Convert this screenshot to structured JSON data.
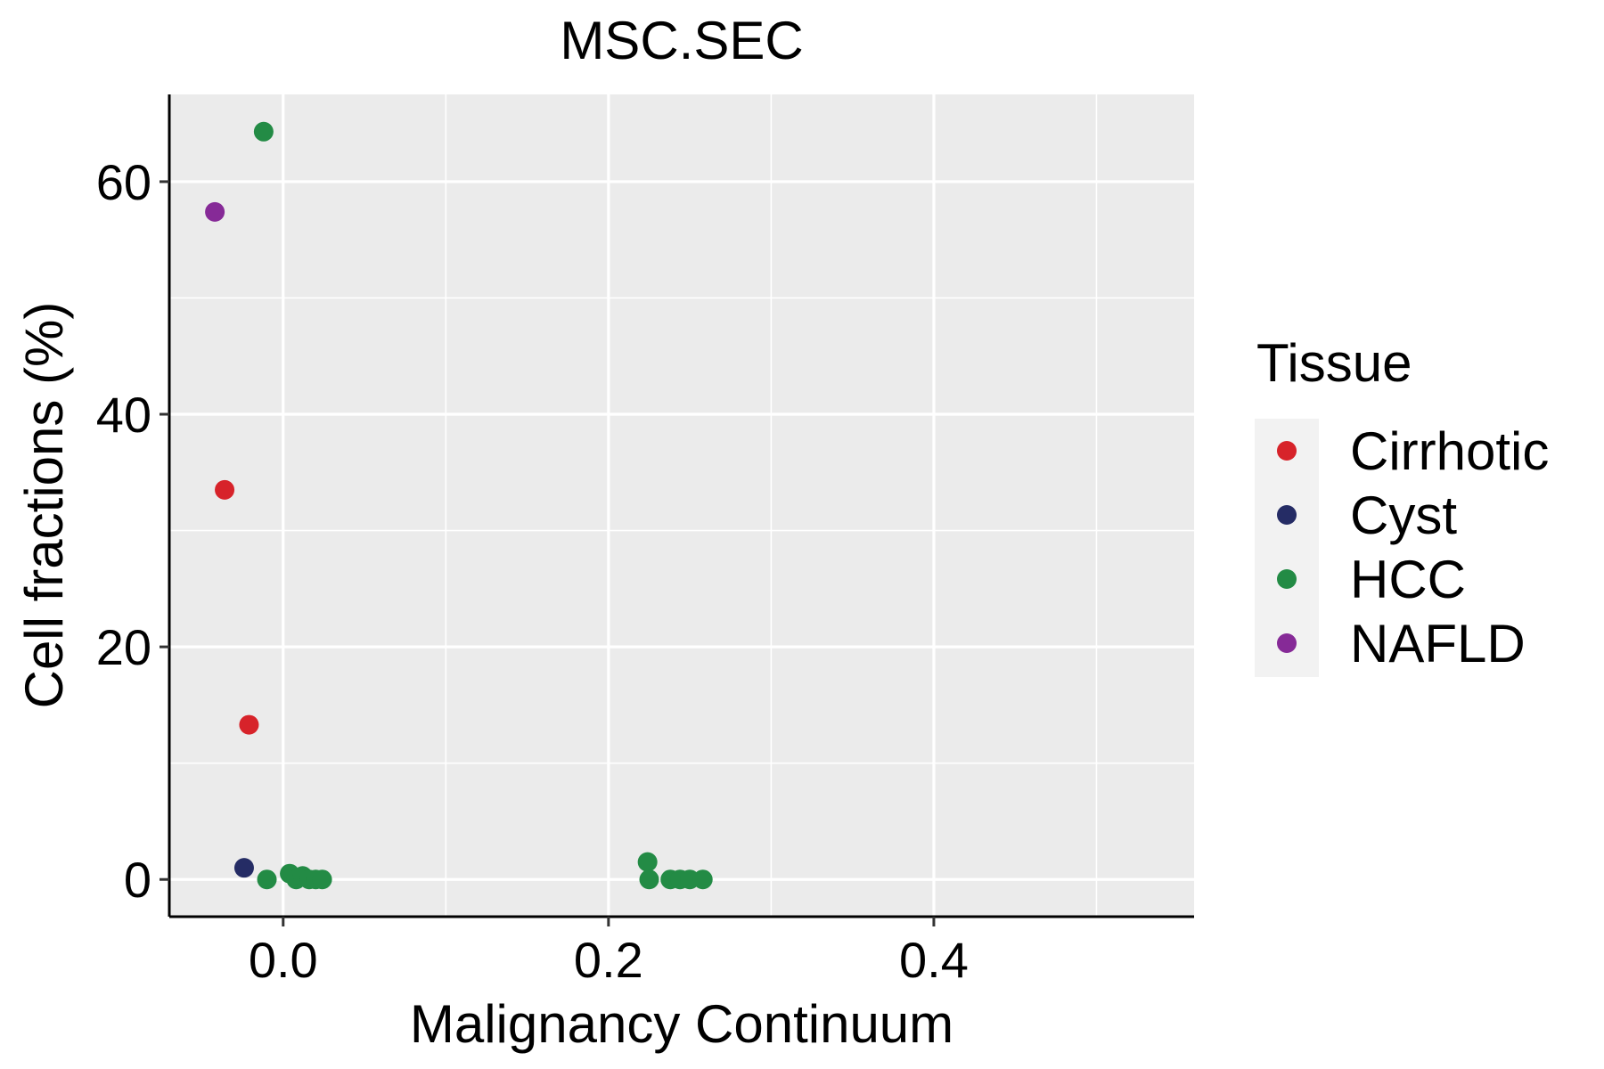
{
  "chart_data": {
    "type": "scatter",
    "title": "MSC.SEC",
    "xlabel": "Malignancy Continuum",
    "ylabel": "Cell fractions (%)",
    "xlim": [
      -0.07,
      0.56
    ],
    "ylim": [
      -3.2,
      67.5
    ],
    "x_ticks": [
      0.0,
      0.2,
      0.4
    ],
    "x_tick_labels": [
      "0.0",
      "0.2",
      "0.4"
    ],
    "y_ticks": [
      0,
      20,
      40,
      60
    ],
    "y_tick_labels": [
      "0",
      "20",
      "40",
      "60"
    ],
    "grid": true,
    "background": "#EBEBEB",
    "legend": {
      "title": "Tissue",
      "position": "right",
      "entries": [
        {
          "name": "Cirrhotic",
          "color": "#D7232A"
        },
        {
          "name": "Cyst",
          "color": "#252C65"
        },
        {
          "name": "HCC",
          "color": "#238B45"
        },
        {
          "name": "NAFLD",
          "color": "#862A97"
        }
      ]
    },
    "series": [
      {
        "name": "Cirrhotic",
        "color": "#D7232A",
        "points": [
          {
            "x": -0.036,
            "y": 33.5
          },
          {
            "x": -0.021,
            "y": 13.3
          }
        ]
      },
      {
        "name": "Cyst",
        "color": "#252C65",
        "points": [
          {
            "x": -0.024,
            "y": 1.0
          }
        ]
      },
      {
        "name": "HCC",
        "color": "#238B45",
        "points": [
          {
            "x": -0.012,
            "y": 64.3
          },
          {
            "x": -0.01,
            "y": 0.0
          },
          {
            "x": 0.004,
            "y": 0.5
          },
          {
            "x": 0.008,
            "y": 0.0
          },
          {
            "x": 0.012,
            "y": 0.3
          },
          {
            "x": 0.016,
            "y": 0.0
          },
          {
            "x": 0.02,
            "y": 0.0
          },
          {
            "x": 0.024,
            "y": 0.0
          },
          {
            "x": 0.224,
            "y": 1.5
          },
          {
            "x": 0.225,
            "y": 0.0
          },
          {
            "x": 0.238,
            "y": 0.0
          },
          {
            "x": 0.244,
            "y": 0.0
          },
          {
            "x": 0.25,
            "y": 0.0
          },
          {
            "x": 0.258,
            "y": 0.0
          }
        ]
      },
      {
        "name": "NAFLD",
        "color": "#862A97",
        "points": [
          {
            "x": -0.042,
            "y": 57.4
          }
        ]
      }
    ]
  }
}
